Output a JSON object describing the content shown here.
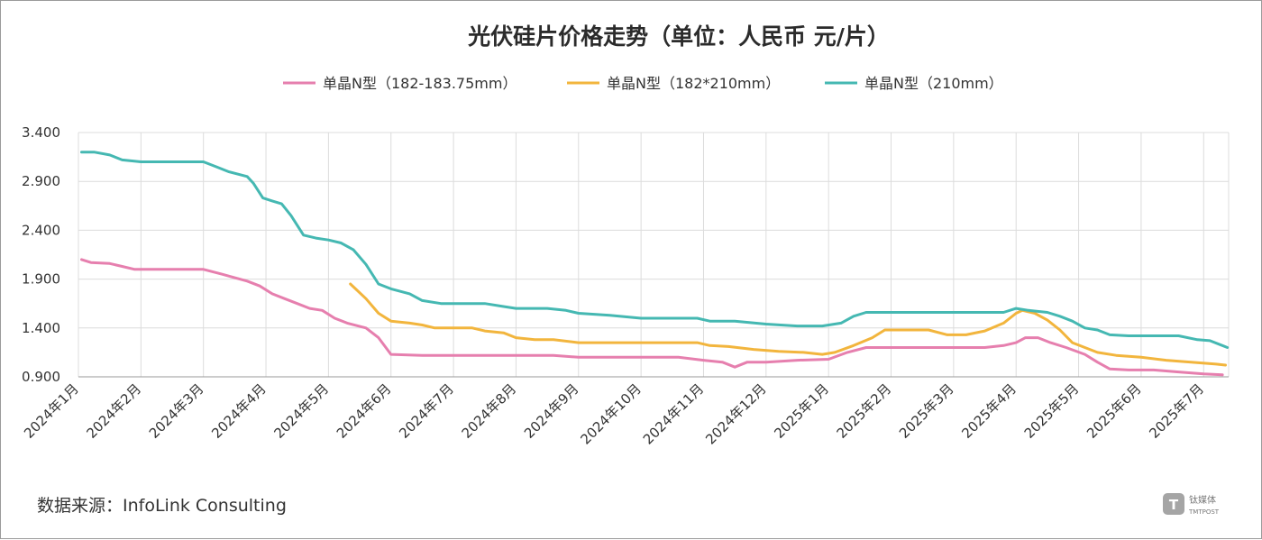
{
  "chart_data": {
    "type": "line",
    "title": "光伏硅片价格走势（单位：人民币 元/片）",
    "source": "数据来源：InfoLink Consulting",
    "ylim": [
      0.9,
      3.4
    ],
    "y_ticks": [
      "3.400",
      "2.900",
      "2.400",
      "1.900",
      "1.400",
      "0.900"
    ],
    "y_tick_values": [
      3.4,
      2.9,
      2.4,
      1.9,
      1.4,
      0.9
    ],
    "x_range": [
      0,
      18.4
    ],
    "x_tick_labels": [
      "2024年1月",
      "2024年2月",
      "2024年3月",
      "2024年4月",
      "2024年5月",
      "2024年6月",
      "2024年7月",
      "2024年8月",
      "2024年9月",
      "2024年10月",
      "2024年11月",
      "2024年12月",
      "2025年1月",
      "2025年2月",
      "2025年3月",
      "2025年4月",
      "2025年5月",
      "2025年6月",
      "2025年7月"
    ],
    "x_tick_values": [
      0,
      1,
      2,
      3,
      4,
      5,
      6,
      7,
      8,
      9,
      10,
      11,
      12,
      13,
      14,
      15,
      16,
      17,
      18
    ],
    "grid": true,
    "legend_position": "top",
    "series": [
      {
        "name": "单晶N型（182-183.75mm）",
        "color": "#e67fae",
        "points": [
          [
            0.05,
            2.1
          ],
          [
            0.2,
            2.07
          ],
          [
            0.5,
            2.06
          ],
          [
            0.7,
            2.03
          ],
          [
            0.9,
            2.0
          ],
          [
            1.5,
            2.0
          ],
          [
            2.0,
            2.0
          ],
          [
            2.3,
            1.95
          ],
          [
            2.7,
            1.88
          ],
          [
            2.9,
            1.83
          ],
          [
            3.1,
            1.75
          ],
          [
            3.3,
            1.7
          ],
          [
            3.5,
            1.65
          ],
          [
            3.7,
            1.6
          ],
          [
            3.9,
            1.58
          ],
          [
            4.1,
            1.5
          ],
          [
            4.3,
            1.45
          ],
          [
            4.6,
            1.4
          ],
          [
            4.8,
            1.3
          ],
          [
            5.0,
            1.13
          ],
          [
            5.5,
            1.12
          ],
          [
            6.0,
            1.12
          ],
          [
            7.0,
            1.12
          ],
          [
            7.6,
            1.12
          ],
          [
            8.0,
            1.1
          ],
          [
            9.0,
            1.1
          ],
          [
            9.6,
            1.1
          ],
          [
            10.0,
            1.07
          ],
          [
            10.3,
            1.05
          ],
          [
            10.5,
            1.0
          ],
          [
            10.7,
            1.05
          ],
          [
            11.0,
            1.05
          ],
          [
            11.5,
            1.07
          ],
          [
            12.0,
            1.08
          ],
          [
            12.3,
            1.15
          ],
          [
            12.6,
            1.2
          ],
          [
            13.0,
            1.2
          ],
          [
            13.5,
            1.2
          ],
          [
            14.0,
            1.2
          ],
          [
            14.5,
            1.2
          ],
          [
            14.8,
            1.22
          ],
          [
            15.0,
            1.25
          ],
          [
            15.15,
            1.3
          ],
          [
            15.35,
            1.3
          ],
          [
            15.55,
            1.25
          ],
          [
            15.8,
            1.2
          ],
          [
            16.1,
            1.13
          ],
          [
            16.3,
            1.05
          ],
          [
            16.5,
            0.98
          ],
          [
            16.8,
            0.97
          ],
          [
            17.2,
            0.97
          ],
          [
            17.6,
            0.95
          ],
          [
            18.0,
            0.93
          ],
          [
            18.3,
            0.92
          ]
        ]
      },
      {
        "name": "单晶N型（182*210mm）",
        "color": "#f2b53d",
        "points": [
          [
            4.35,
            1.85
          ],
          [
            4.6,
            1.7
          ],
          [
            4.8,
            1.55
          ],
          [
            5.0,
            1.47
          ],
          [
            5.3,
            1.45
          ],
          [
            5.5,
            1.43
          ],
          [
            5.7,
            1.4
          ],
          [
            6.0,
            1.4
          ],
          [
            6.3,
            1.4
          ],
          [
            6.5,
            1.37
          ],
          [
            6.8,
            1.35
          ],
          [
            7.0,
            1.3
          ],
          [
            7.3,
            1.28
          ],
          [
            7.6,
            1.28
          ],
          [
            8.0,
            1.25
          ],
          [
            8.5,
            1.25
          ],
          [
            9.0,
            1.25
          ],
          [
            9.5,
            1.25
          ],
          [
            9.9,
            1.25
          ],
          [
            10.1,
            1.22
          ],
          [
            10.4,
            1.21
          ],
          [
            10.8,
            1.18
          ],
          [
            11.2,
            1.16
          ],
          [
            11.6,
            1.15
          ],
          [
            11.9,
            1.13
          ],
          [
            12.1,
            1.15
          ],
          [
            12.4,
            1.22
          ],
          [
            12.7,
            1.3
          ],
          [
            12.9,
            1.38
          ],
          [
            13.2,
            1.38
          ],
          [
            13.6,
            1.38
          ],
          [
            13.9,
            1.33
          ],
          [
            14.2,
            1.33
          ],
          [
            14.5,
            1.37
          ],
          [
            14.8,
            1.45
          ],
          [
            15.0,
            1.55
          ],
          [
            15.1,
            1.58
          ],
          [
            15.3,
            1.55
          ],
          [
            15.5,
            1.48
          ],
          [
            15.7,
            1.38
          ],
          [
            15.9,
            1.25
          ],
          [
            16.1,
            1.2
          ],
          [
            16.3,
            1.15
          ],
          [
            16.6,
            1.12
          ],
          [
            17.0,
            1.1
          ],
          [
            17.4,
            1.07
          ],
          [
            17.8,
            1.05
          ],
          [
            18.2,
            1.03
          ],
          [
            18.35,
            1.02
          ]
        ]
      },
      {
        "name": "单晶N型（210mm）",
        "color": "#45b8b2",
        "points": [
          [
            0.05,
            3.2
          ],
          [
            0.25,
            3.2
          ],
          [
            0.5,
            3.17
          ],
          [
            0.7,
            3.12
          ],
          [
            1.0,
            3.1
          ],
          [
            1.5,
            3.1
          ],
          [
            2.0,
            3.1
          ],
          [
            2.2,
            3.05
          ],
          [
            2.4,
            3.0
          ],
          [
            2.7,
            2.95
          ],
          [
            2.8,
            2.88
          ],
          [
            2.95,
            2.73
          ],
          [
            3.1,
            2.7
          ],
          [
            3.25,
            2.67
          ],
          [
            3.4,
            2.55
          ],
          [
            3.6,
            2.35
          ],
          [
            3.8,
            2.32
          ],
          [
            4.0,
            2.3
          ],
          [
            4.2,
            2.27
          ],
          [
            4.4,
            2.2
          ],
          [
            4.6,
            2.05
          ],
          [
            4.8,
            1.85
          ],
          [
            5.0,
            1.8
          ],
          [
            5.3,
            1.75
          ],
          [
            5.5,
            1.68
          ],
          [
            5.8,
            1.65
          ],
          [
            6.0,
            1.65
          ],
          [
            6.5,
            1.65
          ],
          [
            6.8,
            1.62
          ],
          [
            7.0,
            1.6
          ],
          [
            7.5,
            1.6
          ],
          [
            7.8,
            1.58
          ],
          [
            8.0,
            1.55
          ],
          [
            8.5,
            1.53
          ],
          [
            9.0,
            1.5
          ],
          [
            9.5,
            1.5
          ],
          [
            9.9,
            1.5
          ],
          [
            10.1,
            1.47
          ],
          [
            10.5,
            1.47
          ],
          [
            11.0,
            1.44
          ],
          [
            11.5,
            1.42
          ],
          [
            11.9,
            1.42
          ],
          [
            12.2,
            1.45
          ],
          [
            12.4,
            1.52
          ],
          [
            12.6,
            1.56
          ],
          [
            13.0,
            1.56
          ],
          [
            13.5,
            1.56
          ],
          [
            14.0,
            1.56
          ],
          [
            14.5,
            1.56
          ],
          [
            14.8,
            1.56
          ],
          [
            15.0,
            1.6
          ],
          [
            15.2,
            1.58
          ],
          [
            15.5,
            1.56
          ],
          [
            15.7,
            1.52
          ],
          [
            15.9,
            1.47
          ],
          [
            16.1,
            1.4
          ],
          [
            16.3,
            1.38
          ],
          [
            16.5,
            1.33
          ],
          [
            16.8,
            1.32
          ],
          [
            17.2,
            1.32
          ],
          [
            17.6,
            1.32
          ],
          [
            17.9,
            1.28
          ],
          [
            18.1,
            1.27
          ],
          [
            18.3,
            1.22
          ],
          [
            18.38,
            1.2
          ]
        ]
      }
    ]
  },
  "watermark": {
    "brand": "钛媒体",
    "sub": "TMTPOST"
  }
}
